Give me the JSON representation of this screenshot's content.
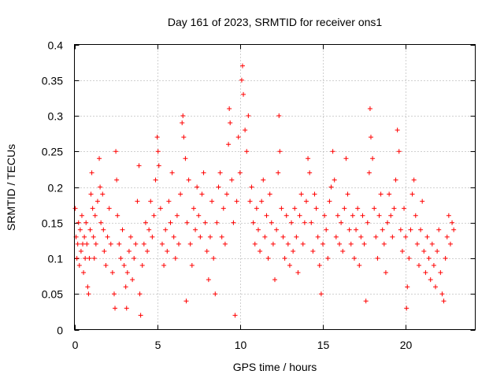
{
  "chart_data": {
    "type": "scatter",
    "title": "Day 161 of 2023, SRMTID for receiver ons1",
    "xlabel": "GPS time / hours",
    "ylabel": "SRMTID / TECUs",
    "xlim": [
      0,
      24.2
    ],
    "ylim": [
      0,
      0.4
    ],
    "x_ticks": [
      0,
      5,
      10,
      15,
      20
    ],
    "x_tick_labels": [
      "0",
      "5",
      "10",
      "15",
      "20"
    ],
    "y_ticks": [
      0,
      0.05,
      0.1,
      0.15,
      0.2,
      0.25,
      0.3,
      0.35,
      0.4
    ],
    "y_tick_labels": [
      "0",
      "0.05",
      "0.1",
      "0.15",
      "0.2",
      "0.25",
      "0.3",
      "0.35",
      "0.4"
    ],
    "grid": true,
    "marker": "+",
    "color": "#ff0000",
    "series": [
      {
        "name": "SRMTID",
        "points": [
          [
            0.05,
            0.17
          ],
          [
            0.1,
            0.13
          ],
          [
            0.15,
            0.1
          ],
          [
            0.2,
            0.12
          ],
          [
            0.25,
            0.15
          ],
          [
            0.3,
            0.09
          ],
          [
            0.35,
            0.14
          ],
          [
            0.4,
            0.11
          ],
          [
            0.45,
            0.16
          ],
          [
            0.5,
            0.12
          ],
          [
            0.55,
            0.08
          ],
          [
            0.6,
            0.13
          ],
          [
            0.65,
            0.1
          ],
          [
            0.7,
            0.15
          ],
          [
            0.75,
            0.12
          ],
          [
            0.8,
            0.06
          ],
          [
            0.85,
            0.05
          ],
          [
            0.9,
            0.1
          ],
          [
            0.95,
            0.14
          ],
          [
            1.0,
            0.19
          ],
          [
            1.05,
            0.22
          ],
          [
            1.1,
            0.17
          ],
          [
            1.15,
            0.13
          ],
          [
            1.2,
            0.1
          ],
          [
            1.25,
            0.16
          ],
          [
            1.3,
            0.12
          ],
          [
            1.4,
            0.18
          ],
          [
            1.5,
            0.24
          ],
          [
            1.55,
            0.2
          ],
          [
            1.6,
            0.15
          ],
          [
            1.7,
            0.19
          ],
          [
            1.75,
            0.14
          ],
          [
            1.8,
            0.11
          ],
          [
            1.9,
            0.09
          ],
          [
            2.0,
            0.13
          ],
          [
            2.1,
            0.17
          ],
          [
            2.2,
            0.12
          ],
          [
            2.3,
            0.08
          ],
          [
            2.4,
            0.05
          ],
          [
            2.45,
            0.03
          ],
          [
            2.5,
            0.25
          ],
          [
            2.55,
            0.21
          ],
          [
            2.6,
            0.16
          ],
          [
            2.7,
            0.12
          ],
          [
            2.8,
            0.1
          ],
          [
            2.9,
            0.14
          ],
          [
            3.0,
            0.09
          ],
          [
            3.1,
            0.06
          ],
          [
            3.15,
            0.03
          ],
          [
            3.2,
            0.08
          ],
          [
            3.3,
            0.11
          ],
          [
            3.4,
            0.13
          ],
          [
            3.5,
            0.07
          ],
          [
            3.6,
            0.1
          ],
          [
            3.7,
            0.12
          ],
          [
            3.8,
            0.18
          ],
          [
            3.9,
            0.23
          ],
          [
            3.95,
            0.05
          ],
          [
            4.0,
            0.02
          ],
          [
            4.1,
            0.09
          ],
          [
            4.2,
            0.12
          ],
          [
            4.3,
            0.15
          ],
          [
            4.4,
            0.11
          ],
          [
            4.5,
            0.14
          ],
          [
            4.6,
            0.18
          ],
          [
            4.7,
            0.13
          ],
          [
            4.8,
            0.16
          ],
          [
            4.9,
            0.21
          ],
          [
            5.0,
            0.27
          ],
          [
            5.05,
            0.25
          ],
          [
            5.1,
            0.23
          ],
          [
            5.2,
            0.17
          ],
          [
            5.3,
            0.12
          ],
          [
            5.4,
            0.09
          ],
          [
            5.5,
            0.14
          ],
          [
            5.6,
            0.11
          ],
          [
            5.7,
            0.18
          ],
          [
            5.8,
            0.15
          ],
          [
            5.9,
            0.22
          ],
          [
            6.0,
            0.13
          ],
          [
            6.1,
            0.1
          ],
          [
            6.2,
            0.16
          ],
          [
            6.3,
            0.12
          ],
          [
            6.4,
            0.19
          ],
          [
            6.5,
            0.29
          ],
          [
            6.55,
            0.3
          ],
          [
            6.6,
            0.27
          ],
          [
            6.7,
            0.24
          ],
          [
            6.75,
            0.04
          ],
          [
            6.8,
            0.15
          ],
          [
            6.9,
            0.21
          ],
          [
            7.0,
            0.12
          ],
          [
            7.1,
            0.09
          ],
          [
            7.2,
            0.17
          ],
          [
            7.3,
            0.14
          ],
          [
            7.4,
            0.2
          ],
          [
            7.5,
            0.16
          ],
          [
            7.6,
            0.13
          ],
          [
            7.7,
            0.19
          ],
          [
            7.8,
            0.22
          ],
          [
            7.9,
            0.15
          ],
          [
            8.0,
            0.11
          ],
          [
            8.1,
            0.07
          ],
          [
            8.2,
            0.13
          ],
          [
            8.3,
            0.18
          ],
          [
            8.4,
            0.1
          ],
          [
            8.5,
            0.05
          ],
          [
            8.6,
            0.15
          ],
          [
            8.7,
            0.2
          ],
          [
            8.8,
            0.22
          ],
          [
            8.9,
            0.13
          ],
          [
            9.0,
            0.17
          ],
          [
            9.1,
            0.12
          ],
          [
            9.2,
            0.19
          ],
          [
            9.3,
            0.26
          ],
          [
            9.35,
            0.31
          ],
          [
            9.4,
            0.29
          ],
          [
            9.5,
            0.21
          ],
          [
            9.6,
            0.15
          ],
          [
            9.7,
            0.02
          ],
          [
            9.8,
            0.18
          ],
          [
            9.9,
            0.27
          ],
          [
            10.0,
            0.22
          ],
          [
            10.1,
            0.35
          ],
          [
            10.15,
            0.37
          ],
          [
            10.2,
            0.33
          ],
          [
            10.3,
            0.28
          ],
          [
            10.4,
            0.25
          ],
          [
            10.5,
            0.3
          ],
          [
            10.6,
            0.18
          ],
          [
            10.7,
            0.2
          ],
          [
            10.8,
            0.15
          ],
          [
            10.9,
            0.12
          ],
          [
            11.0,
            0.17
          ],
          [
            11.1,
            0.14
          ],
          [
            11.2,
            0.11
          ],
          [
            11.3,
            0.18
          ],
          [
            11.4,
            0.21
          ],
          [
            11.5,
            0.13
          ],
          [
            11.6,
            0.16
          ],
          [
            11.7,
            0.1
          ],
          [
            11.8,
            0.19
          ],
          [
            11.9,
            0.15
          ],
          [
            12.0,
            0.12
          ],
          [
            12.1,
            0.07
          ],
          [
            12.2,
            0.14
          ],
          [
            12.3,
            0.22
          ],
          [
            12.35,
            0.3
          ],
          [
            12.4,
            0.25
          ],
          [
            12.5,
            0.17
          ],
          [
            12.6,
            0.13
          ],
          [
            12.7,
            0.1
          ],
          [
            12.8,
            0.16
          ],
          [
            12.9,
            0.12
          ],
          [
            13.0,
            0.09
          ],
          [
            13.1,
            0.15
          ],
          [
            13.2,
            0.11
          ],
          [
            13.3,
            0.17
          ],
          [
            13.4,
            0.13
          ],
          [
            13.5,
            0.08
          ],
          [
            13.6,
            0.16
          ],
          [
            13.7,
            0.19
          ],
          [
            13.8,
            0.12
          ],
          [
            13.9,
            0.15
          ],
          [
            14.0,
            0.18
          ],
          [
            14.1,
            0.24
          ],
          [
            14.2,
            0.22
          ],
          [
            14.3,
            0.15
          ],
          [
            14.4,
            0.11
          ],
          [
            14.5,
            0.19
          ],
          [
            14.6,
            0.17
          ],
          [
            14.7,
            0.13
          ],
          [
            14.8,
            0.09
          ],
          [
            14.9,
            0.05
          ],
          [
            15.0,
            0.12
          ],
          [
            15.1,
            0.16
          ],
          [
            15.2,
            0.14
          ],
          [
            15.3,
            0.1
          ],
          [
            15.4,
            0.18
          ],
          [
            15.5,
            0.2
          ],
          [
            15.6,
            0.25
          ],
          [
            15.7,
            0.21
          ],
          [
            15.8,
            0.13
          ],
          [
            15.9,
            0.16
          ],
          [
            16.0,
            0.12
          ],
          [
            16.1,
            0.15
          ],
          [
            16.2,
            0.11
          ],
          [
            16.3,
            0.17
          ],
          [
            16.4,
            0.24
          ],
          [
            16.5,
            0.19
          ],
          [
            16.6,
            0.14
          ],
          [
            16.7,
            0.12
          ],
          [
            16.8,
            0.16
          ],
          [
            16.9,
            0.1
          ],
          [
            17.0,
            0.14
          ],
          [
            17.1,
            0.17
          ],
          [
            17.2,
            0.09
          ],
          [
            17.3,
            0.13
          ],
          [
            17.4,
            0.16
          ],
          [
            17.5,
            0.12
          ],
          [
            17.6,
            0.04
          ],
          [
            17.7,
            0.15
          ],
          [
            17.8,
            0.22
          ],
          [
            17.85,
            0.31
          ],
          [
            17.9,
            0.27
          ],
          [
            18.0,
            0.24
          ],
          [
            18.1,
            0.17
          ],
          [
            18.2,
            0.13
          ],
          [
            18.3,
            0.1
          ],
          [
            18.4,
            0.16
          ],
          [
            18.5,
            0.19
          ],
          [
            18.6,
            0.14
          ],
          [
            18.7,
            0.12
          ],
          [
            18.8,
            0.08
          ],
          [
            18.9,
            0.15
          ],
          [
            19.0,
            0.19
          ],
          [
            19.1,
            0.16
          ],
          [
            19.2,
            0.13
          ],
          [
            19.3,
            0.17
          ],
          [
            19.4,
            0.21
          ],
          [
            19.5,
            0.28
          ],
          [
            19.6,
            0.25
          ],
          [
            19.7,
            0.14
          ],
          [
            19.8,
            0.11
          ],
          [
            19.9,
            0.17
          ],
          [
            20.0,
            0.13
          ],
          [
            20.05,
            0.03
          ],
          [
            20.1,
            0.06
          ],
          [
            20.2,
            0.1
          ],
          [
            20.3,
            0.14
          ],
          [
            20.4,
            0.19
          ],
          [
            20.5,
            0.21
          ],
          [
            20.6,
            0.16
          ],
          [
            20.7,
            0.12
          ],
          [
            20.8,
            0.09
          ],
          [
            20.9,
            0.14
          ],
          [
            21.0,
            0.18
          ],
          [
            21.1,
            0.11
          ],
          [
            21.2,
            0.08
          ],
          [
            21.3,
            0.13
          ],
          [
            21.4,
            0.1
          ],
          [
            21.5,
            0.07
          ],
          [
            21.6,
            0.12
          ],
          [
            21.7,
            0.09
          ],
          [
            21.8,
            0.06
          ],
          [
            21.9,
            0.11
          ],
          [
            22.0,
            0.14
          ],
          [
            22.1,
            0.08
          ],
          [
            22.2,
            0.05
          ],
          [
            22.3,
            0.04
          ],
          [
            22.4,
            0.1
          ],
          [
            22.5,
            0.13
          ],
          [
            22.6,
            0.16
          ],
          [
            22.7,
            0.12
          ],
          [
            22.8,
            0.15
          ],
          [
            22.9,
            0.14
          ]
        ]
      }
    ]
  }
}
